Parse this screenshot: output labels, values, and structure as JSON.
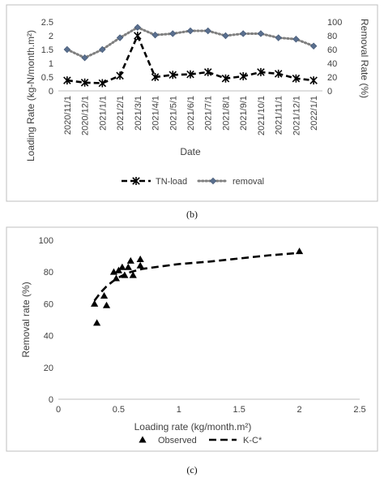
{
  "captions": {
    "b": "(b)",
    "c": "(c)"
  },
  "chart_data": [
    {
      "type": "line",
      "xlabel": "Date",
      "ylabel": "Loading Rate (kg-N/month.m²)",
      "y2label": "Removal Rate (%)",
      "categories": [
        "2020/11/1",
        "2020/12/1",
        "2021/1/1",
        "2021/2/1",
        "2021/3/1",
        "2021/4/1",
        "2021/5/1",
        "2021/6/1",
        "2021/7/1",
        "2021/8/1",
        "2021/9/1",
        "2021/10/1",
        "2021/11/1",
        "2021/12/1",
        "2022/1/1"
      ],
      "ylim": [
        0,
        2.5
      ],
      "yticks": [
        "0",
        "0.5",
        "1",
        "1.5",
        "2",
        "2.5"
      ],
      "y2lim": [
        0,
        100
      ],
      "y2ticks": [
        "0",
        "20",
        "40",
        "60",
        "80",
        "100"
      ],
      "legend": "bottom",
      "grid": false,
      "series": [
        {
          "name": "TN-load",
          "axis": "left",
          "color": "#000000",
          "values": [
            0.38,
            0.3,
            0.28,
            0.55,
            2.0,
            0.5,
            0.58,
            0.6,
            0.68,
            0.45,
            0.53,
            0.68,
            0.62,
            0.45,
            0.38
          ]
        },
        {
          "name": "removal",
          "axis": "right",
          "color": "#7f7f7f",
          "marker_color": "#5a6f8e",
          "values": [
            60,
            48,
            60,
            77,
            92,
            81,
            83,
            87,
            87,
            80,
            83,
            83,
            77,
            75,
            65
          ]
        }
      ]
    },
    {
      "type": "scatter",
      "xlabel": "Loading rate (kg/month.m²)",
      "ylabel": "Removal rate (%)",
      "xlim": [
        0,
        2.5
      ],
      "xticks": [
        "0",
        "0.5",
        "1",
        "1.5",
        "2",
        "2.5"
      ],
      "ylim": [
        0,
        100
      ],
      "yticks": [
        "0",
        "20",
        "40",
        "60",
        "80",
        "100"
      ],
      "legend": "bottom",
      "grid": false,
      "series": [
        {
          "name": "Observed",
          "marker": "triangle",
          "color": "#000000",
          "points": [
            [
              0.3,
              60
            ],
            [
              0.32,
              48
            ],
            [
              0.38,
              65
            ],
            [
              0.4,
              59
            ],
            [
              0.46,
              80
            ],
            [
              0.48,
              76
            ],
            [
              0.5,
              81
            ],
            [
              0.53,
              83
            ],
            [
              0.55,
              78
            ],
            [
              0.58,
              83
            ],
            [
              0.6,
              87
            ],
            [
              0.62,
              78
            ],
            [
              0.68,
              88
            ],
            [
              0.68,
              84
            ],
            [
              2.0,
              93
            ]
          ]
        },
        {
          "name": "K-C*",
          "style": "dashed",
          "color": "#000000",
          "points": [
            [
              0.3,
              62
            ],
            [
              0.35,
              67
            ],
            [
              0.4,
              71
            ],
            [
              0.45,
              74
            ],
            [
              0.5,
              76.5
            ],
            [
              0.55,
              78.5
            ],
            [
              0.6,
              80
            ],
            [
              0.7,
              82
            ],
            [
              0.85,
              83.5
            ],
            [
              1.0,
              85
            ],
            [
              1.25,
              86.5
            ],
            [
              1.5,
              88.5
            ],
            [
              1.75,
              90.5
            ],
            [
              2.0,
              92
            ]
          ]
        }
      ]
    }
  ]
}
